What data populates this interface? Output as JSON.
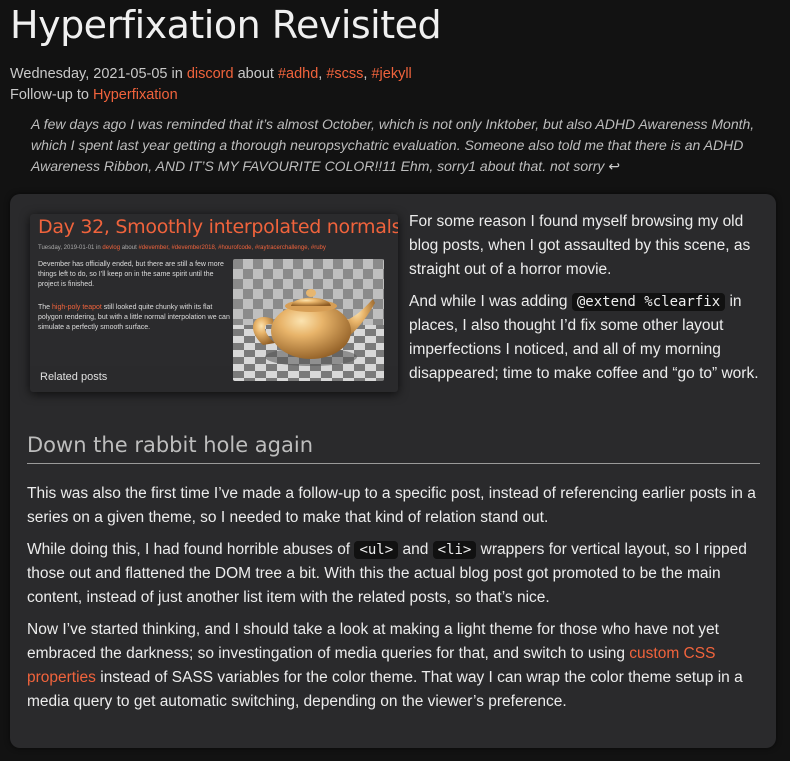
{
  "title": "Hyperfixation Revisited",
  "meta": {
    "date": "Wednesday, 2021-05-05",
    "in_label": "in",
    "category": "discord",
    "about_label": "about",
    "tags": [
      "#adhd",
      "#scss",
      "#jekyll"
    ],
    "followup_label": "Follow-up to",
    "followup_link": "Hyperfixation"
  },
  "summary": "A few days ago I was reminded that it’s almost October, which is not only Inktober, but also ADHD Awareness Month, which I spent last year getting a thorough neuropsychatric evaluation. Someone also told me that there is an ADHD Awareness Ribbon, AND IT’S MY FAVOURITE COLOR!!11 Ehm, sorry1 about that. not sorry",
  "summary_return": "↩",
  "thumbnail": {
    "title": "Day 32, Smoothly interpolated normals",
    "meta_date": "Tuesday, 2019-01-01",
    "meta_in": "in",
    "meta_category": "devlog",
    "meta_about": "about",
    "meta_tags": "#devember, #devember2018, #hourofcode, #raytracerchallenge, #ruby",
    "para1": "Devember has officially ended, but there are still a few more things left to do, so I’ll keep on in the same spirit until the project is finished.",
    "para2_pre": "The ",
    "para2_link": "high-poly teapot",
    "para2_post": " still looked quite chunky with its flat polygon rendering, but with a little normal interpolation we can simulate a perfectly smooth surface.",
    "related": "Related posts"
  },
  "intro": {
    "p1": "For some reason I found myself browsing my old blog posts, when I got assaulted by this scene, as straight out of a horror movie.",
    "p2_pre": "And while I was adding ",
    "p2_code": "@extend %clearfix",
    "p2_post": " in places, I also thought I’d fix some other layout imperfections I noticed, and all of my morning disappeared; time to make coffee and “go to” work."
  },
  "section_heading": "Down the rabbit hole again",
  "body": {
    "p1": "This was also the first time I’ve made a follow-up to a specific post, instead of referencing earlier posts in a series on a given theme, so I needed to make that kind of relation stand out.",
    "p2_pre": "While doing this, I had found horrible abuses of ",
    "p2_code1": "<ul>",
    "p2_mid": " and ",
    "p2_code2": "<li>",
    "p2_post": " wrappers for vertical layout, so I ripped those out and flattened the DOM tree a bit. With this the actual blog post got promoted to be the main content, instead of just another list item with the related posts, so that’s nice.",
    "p3_pre": "Now I’ve started thinking, and I should take a look at making a light theme for those who have not yet embraced the darkness; so investingation of media queries for that, and switch to using ",
    "p3_link": "custom CSS properties",
    "p3_post": " instead of SASS variables for the color theme. That way I can wrap the color theme setup in a media query to get automatic switching, depending on the viewer’s preference."
  },
  "colors": {
    "accent": "#f0633c",
    "background": "#121212",
    "card": "#2a2a2c",
    "text": "#ececec"
  }
}
